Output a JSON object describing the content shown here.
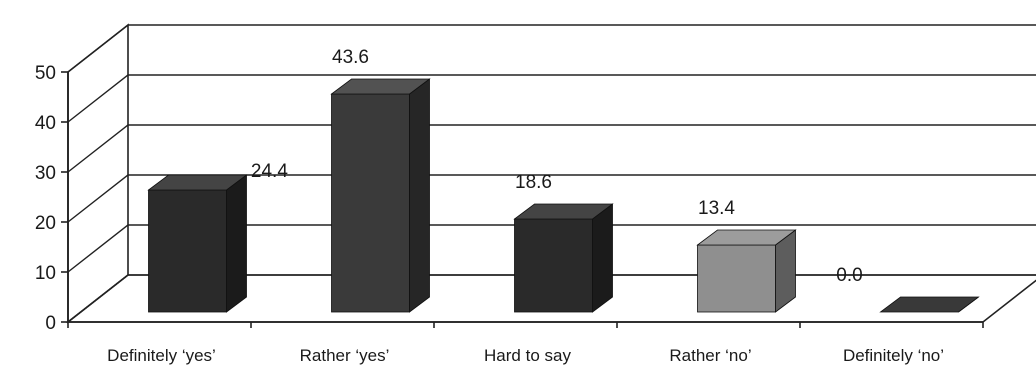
{
  "chart_data": {
    "type": "bar",
    "style": "3d-column",
    "categories": [
      "Definitely ‘yes’",
      "Rather ‘yes’",
      "Hard to say",
      "Rather ‘no’",
      "Definitely ‘no’"
    ],
    "values": [
      24.4,
      43.6,
      18.6,
      13.4,
      0.0
    ],
    "data_labels": [
      "24.4",
      "43.6",
      "18.6",
      "13.4",
      "0.0"
    ],
    "bar_colors": [
      "#2a2a2a",
      "#3a3a3a",
      "#2a2a2a",
      "#8f8f8f",
      "#1e1e1e"
    ],
    "yticks": [
      "0",
      "10",
      "20",
      "30",
      "40",
      "50"
    ],
    "ylim": [
      0,
      50
    ],
    "grid": true,
    "legend": "none",
    "title": "",
    "xlabel": "",
    "ylabel": ""
  }
}
